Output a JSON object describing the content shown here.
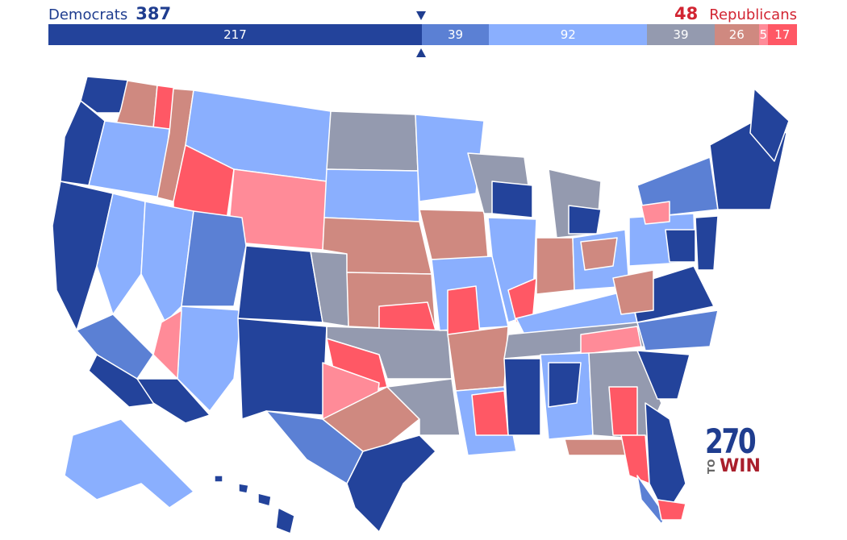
{
  "header": {
    "dem_label": "Democrats",
    "dem_total": "387",
    "rep_total": "48",
    "rep_label": "Republicans"
  },
  "bar": {
    "segments": [
      {
        "value": 217,
        "label": "217",
        "color": "#23439b"
      },
      {
        "value": 39,
        "label": "39",
        "color": "#5b80d4"
      },
      {
        "value": 92,
        "label": "92",
        "color": "#8aaffe"
      },
      {
        "value": 39,
        "label": "39",
        "color": "#949aaf"
      },
      {
        "value": 26,
        "label": "26",
        "color": "#cf8980"
      },
      {
        "value": 5,
        "label": "5",
        "color": "#ff8b98"
      },
      {
        "value": 17,
        "label": "17",
        "color": "#ff5865"
      }
    ]
  },
  "colors": {
    "safe_dem": "#23439b",
    "likely_dem": "#5b80d4",
    "lean_dem": "#8aaffe",
    "tossup": "#949aaf",
    "tilt_rep": "#cf8980",
    "lean_rep": "#ff8b98",
    "safe_rep": "#ff5865",
    "border": "#ffffff"
  },
  "map": {
    "legend_icon": "us-district-map"
  },
  "logo": {
    "number": "270",
    "to": "TO",
    "win": "WIN"
  }
}
